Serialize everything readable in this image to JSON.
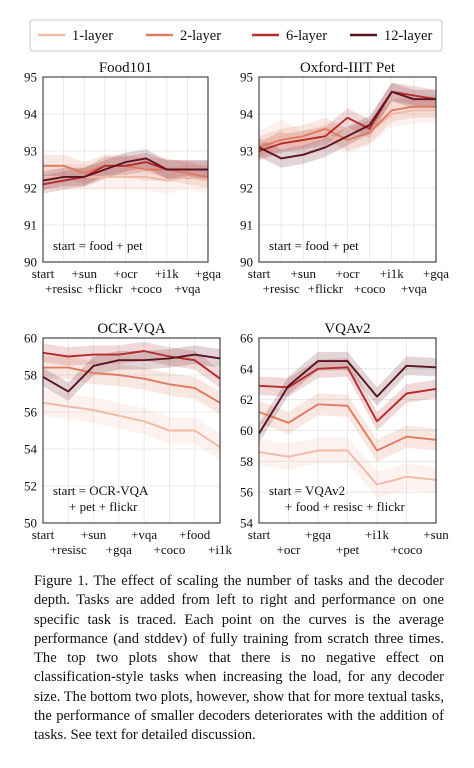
{
  "legend": {
    "entries": [
      {
        "label": "1-layer",
        "color": "#f2b9a6"
      },
      {
        "label": "2-layer",
        "color": "#e07b60"
      },
      {
        "label": "6-layer",
        "color": "#b52c2a"
      },
      {
        "label": "12-layer",
        "color": "#5c1423"
      }
    ]
  },
  "chart_data": [
    {
      "type": "line",
      "title": "Food101",
      "annotation": [
        "start = food + pet"
      ],
      "xlabel": "",
      "ylabel": "",
      "x_top": [
        "start",
        "+sun",
        "+ocr",
        "+i1k",
        "+gqa"
      ],
      "x_bottom": [
        "+resisc",
        "+flickr",
        "+coco",
        "+vqa"
      ],
      "ylim": [
        90,
        95
      ],
      "yticks": [
        "90",
        "91",
        "92",
        "93",
        "94",
        "95"
      ],
      "grid": true,
      "series": [
        {
          "name": "1-layer",
          "values": [
            92.3,
            92.3,
            92.3,
            92.3,
            92.3,
            92.3,
            92.2,
            92.3,
            92.2
          ]
        },
        {
          "name": "2-layer",
          "values": [
            92.6,
            92.6,
            92.4,
            92.6,
            92.6,
            92.5,
            92.5,
            92.4,
            92.3
          ]
        },
        {
          "name": "6-layer",
          "values": [
            92.1,
            92.2,
            92.3,
            92.6,
            92.6,
            92.7,
            92.5,
            92.5,
            92.5
          ]
        },
        {
          "name": "12-layer",
          "values": [
            92.2,
            92.3,
            92.3,
            92.5,
            92.7,
            92.8,
            92.5,
            92.5,
            92.5
          ]
        }
      ]
    },
    {
      "type": "line",
      "title": "Oxford-IIIT Pet",
      "annotation": [
        "start = food + pet"
      ],
      "xlabel": "",
      "ylabel": "",
      "x_top": [
        "start",
        "+sun",
        "+ocr",
        "+i1k",
        "+gqa"
      ],
      "x_bottom": [
        "+resisc",
        "+flickr",
        "+coco",
        "+vqa"
      ],
      "ylim": [
        90,
        95
      ],
      "yticks": [
        "90",
        "91",
        "92",
        "93",
        "94",
        "95"
      ],
      "grid": true,
      "series": [
        {
          "name": "1-layer",
          "values": [
            93.2,
            93.5,
            93.2,
            93.4,
            93.3,
            93.5,
            94.0,
            94.1,
            94.1
          ]
        },
        {
          "name": "2-layer",
          "values": [
            93.1,
            93.3,
            93.4,
            93.6,
            93.3,
            93.5,
            94.1,
            94.2,
            94.2
          ]
        },
        {
          "name": "6-layer",
          "values": [
            93.0,
            93.2,
            93.3,
            93.4,
            93.9,
            93.6,
            94.6,
            94.5,
            94.4
          ]
        },
        {
          "name": "12-layer",
          "values": [
            93.1,
            92.8,
            92.9,
            93.1,
            93.4,
            93.7,
            94.6,
            94.4,
            94.4
          ]
        }
      ]
    },
    {
      "type": "line",
      "title": "OCR-VQA",
      "annotation": [
        "start = OCR-VQA",
        "+ pet + flickr"
      ],
      "xlabel": "",
      "ylabel": "",
      "x_top": [
        "start",
        "+sun",
        "+vqa",
        "+food"
      ],
      "x_bottom": [
        "+resisc",
        "+gqa",
        "+coco",
        "+i1k"
      ],
      "ylim": [
        50,
        60
      ],
      "yticks": [
        "50",
        "52",
        "54",
        "56",
        "58",
        "60"
      ],
      "grid": true,
      "series": [
        {
          "name": "1-layer",
          "values": [
            56.5,
            56.3,
            56.1,
            55.8,
            55.5,
            55.0,
            55.0,
            54.1
          ]
        },
        {
          "name": "2-layer",
          "values": [
            58.4,
            58.4,
            58.1,
            58.0,
            57.8,
            57.5,
            57.3,
            56.5
          ]
        },
        {
          "name": "6-layer",
          "values": [
            59.2,
            59.0,
            59.1,
            59.1,
            59.3,
            59.0,
            58.8,
            57.8
          ]
        },
        {
          "name": "12-layer",
          "values": [
            57.9,
            57.1,
            58.5,
            58.8,
            58.8,
            58.9,
            59.1,
            58.9
          ]
        }
      ]
    },
    {
      "type": "line",
      "title": "VQAv2",
      "annotation": [
        "start = VQAv2",
        "+ food + resisc + flickr"
      ],
      "xlabel": "",
      "ylabel": "",
      "x_top": [
        "start",
        "+gqa",
        "+i1k",
        "+sun"
      ],
      "x_bottom": [
        "+ocr",
        "+pet",
        "+coco"
      ],
      "ylim": [
        54,
        66
      ],
      "yticks": [
        "54",
        "56",
        "58",
        "60",
        "62",
        "64",
        "66"
      ],
      "grid": true,
      "series": [
        {
          "name": "1-layer",
          "values": [
            58.6,
            58.3,
            58.7,
            58.7,
            56.5,
            57.0,
            56.8
          ]
        },
        {
          "name": "2-layer",
          "values": [
            61.2,
            60.5,
            61.7,
            61.6,
            58.7,
            59.6,
            59.4
          ]
        },
        {
          "name": "6-layer",
          "values": [
            62.9,
            62.8,
            64.0,
            64.1,
            60.6,
            62.4,
            62.7
          ]
        },
        {
          "name": "12-layer",
          "values": [
            59.8,
            62.9,
            64.5,
            64.5,
            62.2,
            64.2,
            64.1
          ]
        }
      ]
    }
  ],
  "caption": "Figure 1. The effect of scaling the number of tasks and the decoder depth. Tasks are added from left to right and performance on one specific task is traced. Each point on the curves is the average performance (and stddev) of fully training from scratch three times. The top two plots show that there is no negative effect on classification-style tasks when increasing the load, for any decoder size. The bottom two plots, however, show that for more textual tasks, the performance of smaller decoders deteriorates with the addition of tasks. See text for detailed discussion."
}
